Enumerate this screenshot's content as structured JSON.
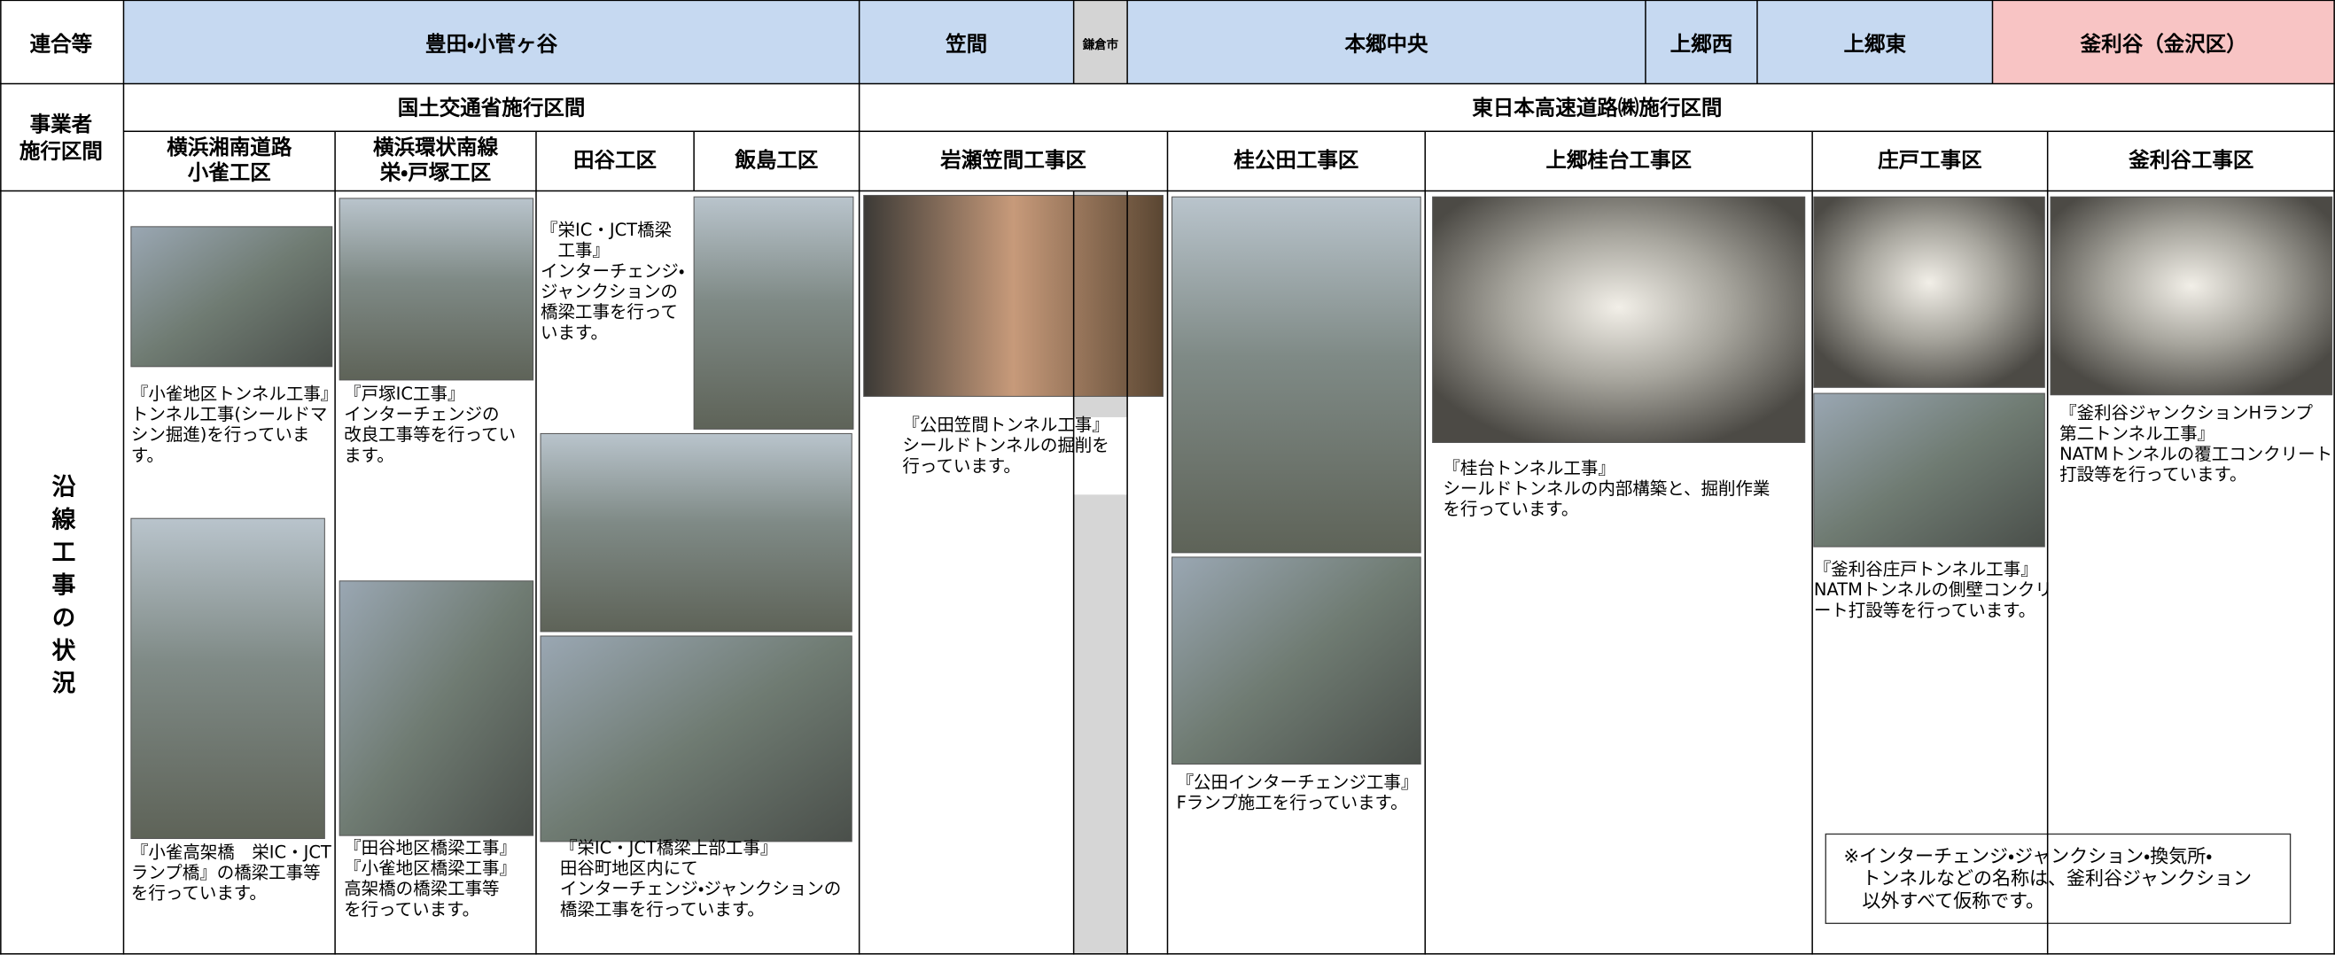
{
  "header": {
    "row_label": "連合等",
    "areas": [
      "豊田・小菅ヶ谷",
      "笠間",
      "鎌倉市",
      "本郷中央",
      "上郷西",
      "上郷東",
      "釜利谷（金沢区）"
    ]
  },
  "operator": {
    "row_label": [
      "事業者",
      "施行区間"
    ],
    "sections": [
      "国土交通省施行区間",
      "東日本高速道路㈱施行区間"
    ]
  },
  "status_label": "沿線工事の状況",
  "work_areas": [
    {
      "title": [
        "横浜湘南道路",
        "小雀工区"
      ],
      "captions": [
        [
          "『小雀地区トンネル工事』",
          "トンネル工事(シールドマ",
          "シン掘進)を行っていま",
          "す。"
        ],
        [
          "『小雀高架橋　栄IC・JCT",
          "ランプ橋』の橋梁工事等",
          "を行っています。"
        ]
      ]
    },
    {
      "title": [
        "横浜環状南線",
        "栄・戸塚工区"
      ],
      "captions": [
        [
          "『戸塚IC工事』",
          "インターチェンジの",
          "改良工事等を行ってい",
          "ます。"
        ],
        [
          "『田谷地区橋梁工事』",
          "『小雀地区橋梁工事』",
          "高架橋の橋梁工事等",
          "を行っています。"
        ]
      ]
    },
    {
      "title": [
        "田谷工区"
      ],
      "captions": [
        [
          "『栄IC・JCT橋梁",
          "　工事』",
          "インターチェンジ・",
          "ジャンクションの",
          "橋梁工事を行って",
          "います。"
        ],
        [
          "『栄IC・JCT橋梁上部工事』",
          "田谷町地区内にて",
          "インターチェンジ・ジャンクションの",
          "橋梁工事を行っています。"
        ]
      ]
    },
    {
      "title": [
        "飯島工区"
      ],
      "captions": []
    },
    {
      "title": [
        "岩瀬笠間工事区"
      ],
      "captions": [
        [
          "『公田笠間トンネル工事』",
          "シールドトンネルの掘削を",
          "行っています。"
        ]
      ]
    },
    {
      "title": [
        "桂公田工事区"
      ],
      "captions": [
        [
          "『公田インターチェンジ工事』",
          "Fランプ施工を行っています。"
        ]
      ]
    },
    {
      "title": [
        "上郷桂台工事区"
      ],
      "captions": [
        [
          "『桂台トンネル工事』",
          "シールドトンネルの内部構築と、掘削作業",
          "を行っています。"
        ]
      ]
    },
    {
      "title": [
        "庄戸工事区"
      ],
      "captions": [
        [
          "『釜利谷庄戸トンネル工事』",
          "NATMトンネルの側壁コンクリ",
          "ート打設等を行っています。"
        ]
      ]
    },
    {
      "title": [
        "釜利谷工事区"
      ],
      "captions": [
        [
          "『釜利谷ジャンクションHランプ",
          "第二トンネル工事』",
          "NATMトンネルの覆工コンクリート",
          "打設等を行っています。"
        ]
      ]
    }
  ],
  "note": [
    "※インターチェンジ・ジャンクション・換気所・",
    "　トンネルなどの名称は、釜利谷ジャンクション",
    "　以外すべて仮称です。"
  ]
}
